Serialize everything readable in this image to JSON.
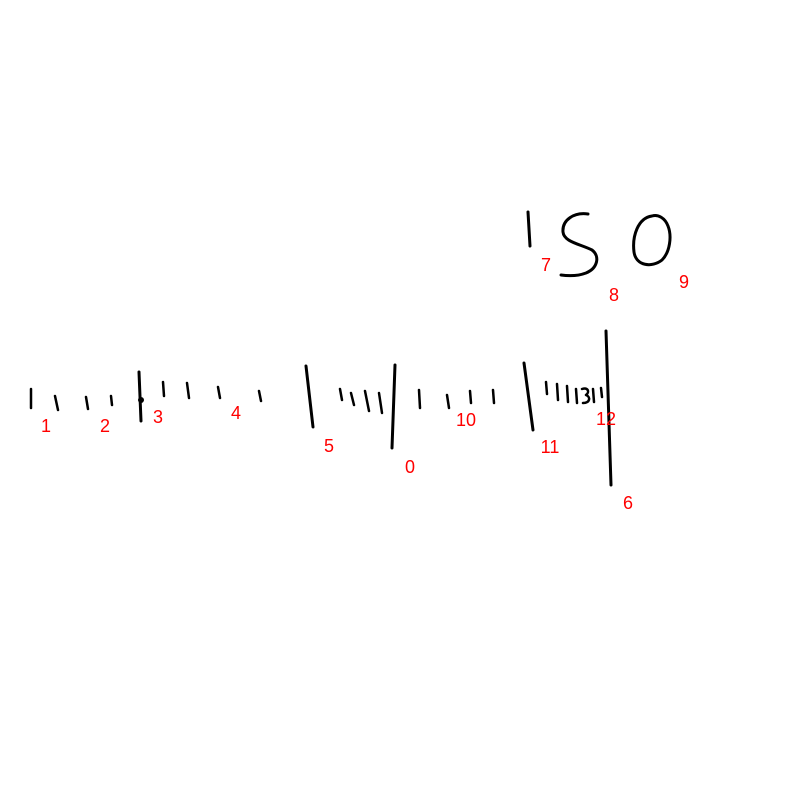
{
  "sketch": {
    "ink_color": "#000000",
    "handwritten_text": "150",
    "markers": [
      "0",
      "1",
      "2",
      "3",
      "4",
      "5",
      "6",
      "7",
      "8",
      "9",
      "10",
      "11",
      "12"
    ],
    "marker_color": "#ff0000"
  }
}
